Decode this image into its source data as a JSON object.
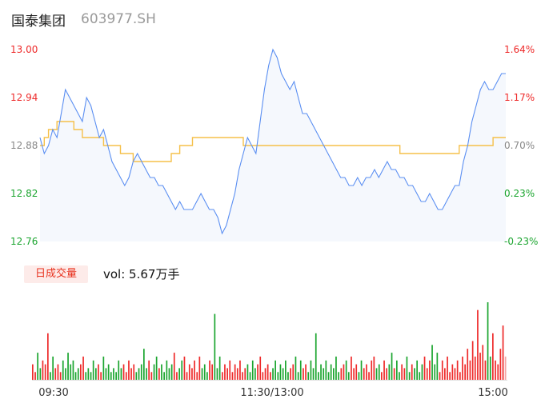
{
  "stock": {
    "name": "国泰集团",
    "code": "603977.SH"
  },
  "volume_section": {
    "tab_label": "日成交量",
    "vol_label": "vol: 5.67万手"
  },
  "colors": {
    "up": "#ee2a2a",
    "down": "#1ba52f",
    "neutral": "#888888",
    "price_line": "#5b8ff2",
    "avg_line": "#f5c04a",
    "area_fill": "#f5f8fd"
  },
  "chart_data": [
    {
      "type": "line",
      "title": "",
      "y_ticks_price": [
        "13.00",
        "12.94",
        "12.88",
        "12.82",
        "12.76"
      ],
      "y_ticks_pct": [
        "1.64%",
        "1.17%",
        "0.70%",
        "0.23%",
        "-0.23%"
      ],
      "ylim": [
        12.76,
        13.0
      ],
      "grid": false,
      "series": [
        {
          "values": [
            12.89,
            12.87,
            12.88,
            12.9,
            12.89,
            12.92,
            12.95,
            12.94,
            12.93,
            12.92,
            12.91,
            12.94,
            12.93,
            12.91,
            12.89,
            12.9,
            12.88,
            12.86,
            12.85,
            12.84,
            12.83,
            12.84,
            12.86,
            12.87,
            12.86,
            12.85,
            12.84,
            12.84,
            12.83,
            12.83,
            12.82,
            12.81,
            12.8,
            12.81,
            12.8,
            12.8,
            12.8,
            12.81,
            12.82,
            12.81,
            12.8,
            12.8,
            12.79,
            12.77,
            12.78,
            12.8,
            12.82,
            12.85,
            12.87,
            12.89,
            12.88,
            12.87,
            12.91,
            12.95,
            12.98,
            13.0,
            12.99,
            12.97,
            12.96,
            12.95,
            12.96,
            12.94,
            12.92,
            12.92,
            12.91,
            12.9,
            12.89,
            12.88,
            12.87,
            12.86,
            12.85,
            12.84,
            12.84,
            12.83,
            12.83,
            12.84,
            12.83,
            12.84,
            12.84,
            12.85,
            12.84,
            12.85,
            12.86,
            12.85,
            12.85,
            12.84,
            12.84,
            12.83,
            12.83,
            12.82,
            12.81,
            12.81,
            12.82,
            12.81,
            12.8,
            12.8,
            12.81,
            12.82,
            12.83,
            12.83,
            12.86,
            12.88,
            12.91,
            12.93,
            12.95,
            12.96,
            12.95,
            12.95,
            12.96,
            12.97,
            12.97
          ]
        },
        {
          "values": [
            12.88,
            12.89,
            12.9,
            12.9,
            12.91,
            12.91,
            12.91,
            12.91,
            12.9,
            12.9,
            12.89,
            12.89,
            12.89,
            12.89,
            12.89,
            12.88,
            12.88,
            12.88,
            12.88,
            12.87,
            12.87,
            12.87,
            12.86,
            12.86,
            12.86,
            12.86,
            12.86,
            12.86,
            12.86,
            12.86,
            12.86,
            12.87,
            12.87,
            12.88,
            12.88,
            12.88,
            12.89,
            12.89,
            12.89,
            12.89,
            12.89,
            12.89,
            12.89,
            12.89,
            12.89,
            12.89,
            12.89,
            12.89,
            12.88,
            12.88,
            12.88,
            12.88,
            12.88,
            12.88,
            12.88,
            12.88,
            12.88,
            12.88,
            12.88,
            12.88,
            12.88,
            12.88,
            12.88,
            12.88,
            12.88,
            12.88,
            12.88,
            12.88,
            12.88,
            12.88,
            12.88,
            12.88,
            12.88,
            12.88,
            12.88,
            12.88,
            12.88,
            12.88,
            12.88,
            12.88,
            12.88,
            12.88,
            12.88,
            12.88,
            12.88,
            12.87,
            12.87,
            12.87,
            12.87,
            12.87,
            12.87,
            12.87,
            12.87,
            12.87,
            12.87,
            12.87,
            12.87,
            12.87,
            12.87,
            12.88,
            12.88,
            12.88,
            12.88,
            12.88,
            12.88,
            12.88,
            12.88,
            12.89,
            12.89,
            12.89,
            12.89
          ]
        }
      ]
    },
    {
      "type": "bar",
      "title": "",
      "x_ticks": [
        "09:30",
        "11:30/13:00",
        "15:00"
      ],
      "values": [
        4,
        2,
        7,
        3,
        5,
        4,
        12,
        2,
        6,
        3,
        4,
        2,
        5,
        3,
        7,
        4,
        5,
        2,
        3,
        4,
        6,
        2,
        3,
        2,
        5,
        3,
        4,
        2,
        6,
        3,
        4,
        2,
        3,
        2,
        5,
        3,
        4,
        2,
        5,
        3,
        4,
        2,
        3,
        4,
        8,
        3,
        5,
        2,
        4,
        6,
        3,
        4,
        2,
        5,
        3,
        4,
        7,
        2,
        3,
        5,
        6,
        2,
        4,
        3,
        5,
        2,
        6,
        3,
        4,
        2,
        5,
        4,
        17,
        3,
        6,
        2,
        4,
        3,
        5,
        2,
        4,
        3,
        5,
        2,
        3,
        4,
        2,
        5,
        3,
        4,
        6,
        2,
        3,
        4,
        2,
        3,
        5,
        2,
        4,
        3,
        5,
        2,
        3,
        4,
        6,
        2,
        5,
        3,
        4,
        2,
        5,
        3,
        12,
        2,
        4,
        3,
        5,
        2,
        4,
        3,
        6,
        2,
        3,
        4,
        5,
        2,
        6,
        3,
        4,
        2,
        5,
        3,
        4,
        2,
        5,
        6,
        3,
        4,
        2,
        5,
        3,
        4,
        7,
        3,
        5,
        2,
        4,
        3,
        6,
        2,
        4,
        3,
        5,
        2,
        4,
        6,
        3,
        5,
        9,
        4,
        7,
        2,
        5,
        3,
        6,
        2,
        4,
        3,
        5,
        2,
        6,
        4,
        8,
        5,
        10,
        6,
        18,
        7,
        9,
        5,
        20,
        6,
        12,
        5,
        4,
        8,
        14,
        6
      ]
    }
  ]
}
